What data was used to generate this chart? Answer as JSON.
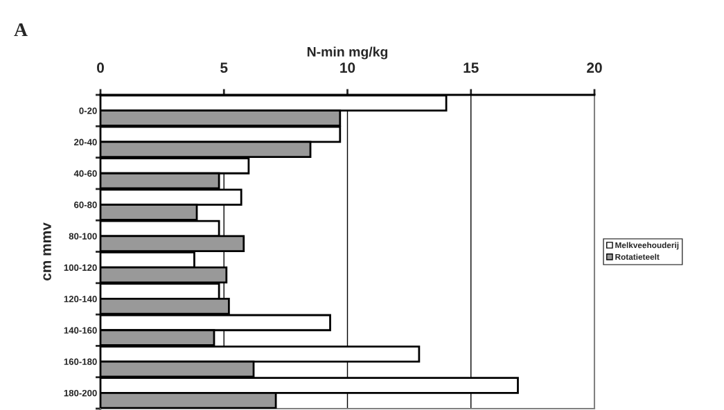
{
  "chart_data": {
    "type": "bar",
    "orientation": "horizontal",
    "xlabel": "N-min mg/kg",
    "ylabel": "cm mmv",
    "annotations": [
      "A"
    ],
    "categories": [
      "0-20",
      "20-40",
      "40-60",
      "60-80",
      "80-100",
      "100-120",
      "120-140",
      "140-160",
      "160-180",
      "180-200"
    ],
    "series": [
      {
        "name": "Melkveehouderij",
        "color": "#ffffff",
        "values": [
          14.0,
          9.7,
          6.0,
          5.7,
          4.8,
          3.8,
          4.8,
          9.3,
          12.9,
          16.9
        ]
      },
      {
        "name": "Rotatieteelt",
        "color": "#999999",
        "values": [
          9.7,
          8.5,
          4.8,
          3.9,
          5.8,
          5.1,
          5.2,
          4.6,
          6.2,
          7.1
        ]
      }
    ],
    "xlim": [
      0,
      20
    ],
    "xticks": [
      0,
      5,
      10,
      15,
      20
    ],
    "grid": "x",
    "legend": "right"
  }
}
